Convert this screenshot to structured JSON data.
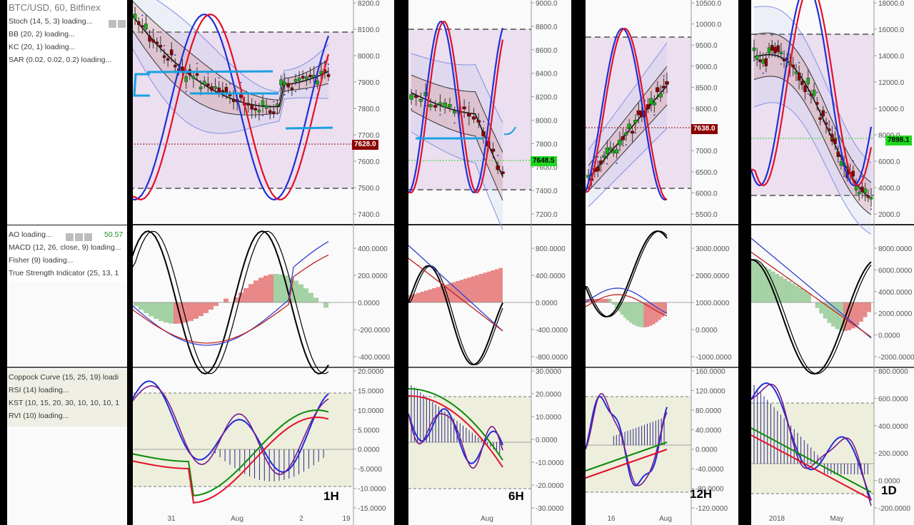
{
  "panels": [
    {
      "id": "1h",
      "timeframe": "1H",
      "symbol": "BTC/USD, 60, Bitfinex",
      "legend_top": [
        "Stoch (14, 5, 3) loading...",
        "BB (20, 2) loading...",
        "KC (20, 1) loading...",
        "SAR (0.02, 0.02, 0.2) loading..."
      ],
      "legend_mid": [
        "AO loading...",
        "MACD (12, 26, close, 9) loading...",
        "Fisher (9) loading...",
        "True Strength Indicator (25, 13, 1"
      ],
      "ao_value": "50.57",
      "legend_bot": [
        "Coppock Curve (15, 25, 19) loadi",
        "RSI (14) loading...",
        "KST (10, 15, 20, 30, 10, 10, 10, 1",
        "RVI (10) loading..."
      ],
      "price_ticks": [
        "8200.0",
        "8100.0",
        "8000.0",
        "7900.0",
        "7800.0",
        "7700.0",
        "7600.0",
        "7500.0",
        "7400.0"
      ],
      "price_tag": "7628.0",
      "mid_ticks": [
        "400.0000",
        "200.0000",
        "0.0000",
        "-200.0000",
        "-400.0000"
      ],
      "bot_ticks": [
        "20.0000",
        "15.0000",
        "10.0000",
        "5.0000",
        "0.0000",
        "-5.0000",
        "-10.0000",
        "-15.0000"
      ],
      "x_ticks": [
        "31",
        "Aug",
        "2",
        "19"
      ]
    },
    {
      "id": "6h",
      "timeframe": "6H",
      "price_ticks": [
        "9000.0",
        "8800.0",
        "8600.0",
        "8400.0",
        "8200.0",
        "8000.0",
        "7800.0",
        "7600.0",
        "7400.0",
        "7200.0"
      ],
      "price_tag": "7648.5",
      "mid_ticks": [
        "800.0000",
        "400.0000",
        "0.0000",
        "-400.0000",
        "-800.0000"
      ],
      "bot_ticks": [
        "30.0000",
        "20.0000",
        "10.0000",
        "0.0000",
        "-10.0000",
        "-20.0000",
        "-30.0000"
      ],
      "x_ticks": [
        "Aug"
      ]
    },
    {
      "id": "12h",
      "timeframe": "12H",
      "price_ticks": [
        "10500.0",
        "10000.0",
        "9500.0",
        "9000.0",
        "8500.0",
        "8000.0",
        "7500.0",
        "7000.0",
        "6500.0",
        "6000.0",
        "5500.0"
      ],
      "price_tag": "7638.0",
      "mid_ticks": [
        "3000.0000",
        "2000.0000",
        "1000.0000",
        "0.0000",
        "-1000.0000"
      ],
      "bot_ticks": [
        "160.0000",
        "120.0000",
        "80.0000",
        "40.0000",
        "0.0000",
        "-40.0000",
        "-80.0000",
        "-120.0000"
      ],
      "x_ticks": [
        "16",
        "Aug"
      ]
    },
    {
      "id": "1d",
      "timeframe": "1D",
      "price_ticks": [
        "18000.0",
        "16000.0",
        "14000.0",
        "12000.0",
        "10000.0",
        "8000.0",
        "6000.0",
        "4000.0",
        "2000.0"
      ],
      "price_tag": "7898.1",
      "mid_ticks": [
        "8000.0000",
        "6000.0000",
        "4000.0000",
        "2000.0000",
        "0.0000",
        "-2000.0000"
      ],
      "bot_ticks": [
        "800.0000",
        "600.0000",
        "400.0000",
        "200.0000",
        "0.0000",
        "-200.0000"
      ],
      "x_ticks": [
        "2018",
        "May"
      ]
    }
  ],
  "colors": {
    "stoch_blue": "#1f2fd6",
    "stoch_red": "#e3102a",
    "up": "#17b317",
    "down": "#8b0000",
    "annotation": "#1aa0e0",
    "band_fill": "#ecdff0"
  }
}
